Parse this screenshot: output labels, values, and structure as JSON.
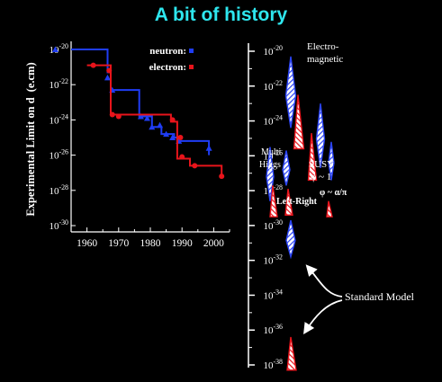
{
  "title": "A bit of history",
  "chart_data": [
    {
      "type": "line",
      "ylabel": "Experimental Limit on d",
      "yunit": "(e.cm)",
      "xlim": [
        1955,
        2005
      ],
      "ylim_exponent": [
        -30,
        -20
      ],
      "y_scale": "log10",
      "x_ticks": [
        "1960",
        "1970",
        "1980",
        "1990",
        "2000"
      ],
      "y_ticks": [
        {
          "exp": "-20",
          "base": "10"
        },
        {
          "exp": "-22",
          "base": "10"
        },
        {
          "exp": "-24",
          "base": "10"
        },
        {
          "exp": "-26",
          "base": "10"
        },
        {
          "exp": "-28",
          "base": "10"
        },
        {
          "exp": "-30",
          "base": "10"
        }
      ],
      "legend_placement": "top-right",
      "series": [
        {
          "name": "neutron:",
          "color": "#1f3df5",
          "points": [
            {
              "year": 1950,
              "log10_d": -20.0
            },
            {
              "year": 1966.5,
              "log10_d": -21.6
            },
            {
              "year": 1968,
              "log10_d": -22.3
            },
            {
              "year": 1977,
              "log10_d": -23.8
            },
            {
              "year": 1979,
              "log10_d": -23.9
            },
            {
              "year": 1980.5,
              "log10_d": -24.4
            },
            {
              "year": 1983,
              "log10_d": -24.3
            },
            {
              "year": 1985,
              "log10_d": -24.8
            },
            {
              "year": 1987,
              "log10_d": -25.0
            },
            {
              "year": 1989,
              "log10_d": -25.2
            },
            {
              "year": 1998.5,
              "log10_d": -25.6
            }
          ],
          "step_path": [
            [
              1955,
              -20.0
            ],
            [
              1966.5,
              -20.0
            ],
            [
              1966.5,
              -21.3
            ],
            [
              1967.5,
              -21.3
            ],
            [
              1967.5,
              -22.3
            ],
            [
              1969,
              -22.3
            ],
            [
              1969,
              -22.3
            ],
            [
              1976.5,
              -22.3
            ],
            [
              1976.5,
              -23.8
            ],
            [
              1980.5,
              -23.8
            ],
            [
              1980.5,
              -24.4
            ],
            [
              1983.5,
              -24.4
            ],
            [
              1983.5,
              -24.8
            ],
            [
              1987.5,
              -24.8
            ],
            [
              1987.5,
              -25.0
            ],
            [
              1988.5,
              -25.0
            ],
            [
              1988.5,
              -25.2
            ],
            [
              1998.5,
              -25.2
            ],
            [
              1998.5,
              -26.0
            ]
          ]
        },
        {
          "name": "electron:",
          "color": "#e8141b",
          "points": [
            {
              "year": 1962,
              "log10_d": -20.9
            },
            {
              "year": 1967,
              "log10_d": -21.2
            },
            {
              "year": 1968,
              "log10_d": -23.7
            },
            {
              "year": 1970,
              "log10_d": -23.8
            },
            {
              "year": 1987,
              "log10_d": -24.0
            },
            {
              "year": 1989.5,
              "log10_d": -25.0
            },
            {
              "year": 1990,
              "log10_d": -26.1
            },
            {
              "year": 1994,
              "log10_d": -26.6
            },
            {
              "year": 2002.5,
              "log10_d": -27.2
            }
          ],
          "step_path": [
            [
              1960,
              -20.9
            ],
            [
              1967.5,
              -20.9
            ],
            [
              1967.5,
              -23.7
            ],
            [
              1986.5,
              -23.7
            ],
            [
              1986.5,
              -24.1
            ],
            [
              1988.5,
              -24.1
            ],
            [
              1988.5,
              -26.2
            ],
            [
              1992.5,
              -26.2
            ],
            [
              1992.5,
              -26.6
            ],
            [
              2002.5,
              -26.6
            ],
            [
              2002.5,
              -27.2
            ]
          ]
        }
      ]
    },
    {
      "type": "other",
      "y_scale": "log10",
      "ylim_exponent": [
        -38,
        -20
      ],
      "y_ticks": [
        {
          "exp": "-20",
          "base": "10"
        },
        {
          "exp": "-22",
          "base": "10"
        },
        {
          "exp": "-24",
          "base": "10"
        },
        {
          "exp": "-26",
          "base": "10"
        },
        {
          "exp": "-28",
          "base": "10"
        },
        {
          "exp": "-30",
          "base": "10"
        },
        {
          "exp": "-32",
          "base": "10"
        },
        {
          "exp": "-34",
          "base": "10"
        },
        {
          "exp": "-36",
          "base": "10"
        },
        {
          "exp": "-38",
          "base": "10"
        }
      ],
      "labels": {
        "electromagnetic_1": "Electro-",
        "electromagnetic_2": "magnetic",
        "multi_higgs_1": "Multi",
        "multi_higgs_2": "Higgs",
        "susy": "SUSY",
        "susy_phi": "φ ~ 1",
        "left_right": "Left-Right",
        "phi_alpha": "φ ~ α/π",
        "standard_model": "Standard Model"
      },
      "regions": [
        {
          "name": "electromagnetic",
          "species": "neutron",
          "top": -20.3,
          "bottom": -24.4
        },
        {
          "name": "electromagnetic",
          "species": "electron",
          "top": -22.5,
          "bottom": -25.6
        },
        {
          "name": "susy",
          "species": "neutron",
          "top": -23.0,
          "bottom": -26.7
        },
        {
          "name": "susy",
          "species": "electron",
          "top": -24.7,
          "bottom": -27.4
        },
        {
          "name": "phi_alpha",
          "species": "neutron",
          "top": -25.2,
          "bottom": -27.4
        },
        {
          "name": "phi_alpha",
          "species": "electron",
          "top": -28.6,
          "bottom": -29.5
        },
        {
          "name": "multi_higgs",
          "species": "neutron",
          "top": -25.5,
          "bottom": -28.6
        },
        {
          "name": "multi_higgs",
          "species": "electron",
          "top": -27.7,
          "bottom": -29.5
        },
        {
          "name": "left_right",
          "species": "neutron",
          "top": -25.7,
          "bottom": -27.7
        },
        {
          "name": "left_right",
          "species": "electron",
          "top": -27.9,
          "bottom": -29.4
        },
        {
          "name": "standard_model",
          "species": "neutron",
          "top": -29.7,
          "bottom": -31.8
        },
        {
          "name": "standard_model",
          "species": "electron",
          "top": -36.4,
          "bottom": -38.3
        }
      ],
      "colors": {
        "neutron": "#2b44f5",
        "electron": "#e8141b",
        "axis": "#ffffff"
      }
    }
  ]
}
